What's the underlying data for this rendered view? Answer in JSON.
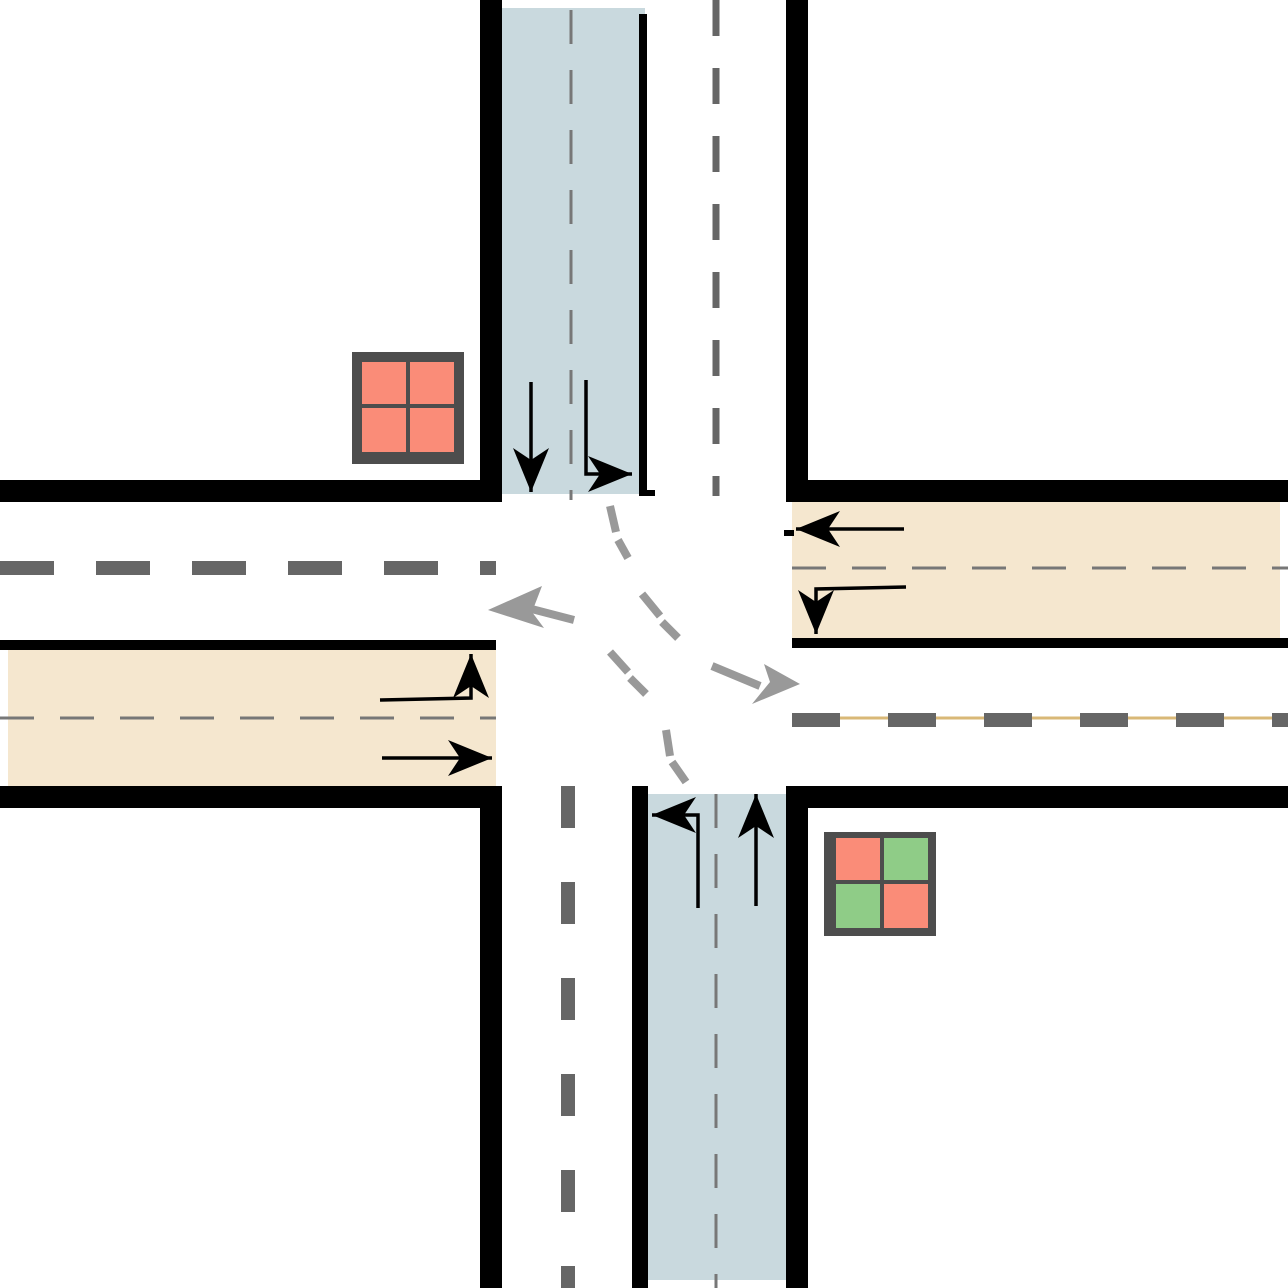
{
  "colors": {
    "background": "#ffffff",
    "road": "#ffffff",
    "curb": "#000000",
    "lane_marking": "#666666",
    "lane_marking_thin": "#777777",
    "arrow": "#000000",
    "path_guide": "#999999",
    "ns_approach_fill": "#c9d9de",
    "ew_approach_fill": "#f5e7cf",
    "signal_frame": "#4d4d4d",
    "signal_red": "#fa8c78",
    "signal_green": "#8fcc87",
    "yellow_trace": "#d9b877"
  },
  "signals": [
    {
      "name": "northwest-signal",
      "controls": "north-south",
      "lamps": [
        "red",
        "red",
        "red",
        "red"
      ]
    },
    {
      "name": "southeast-signal",
      "controls": "east-west",
      "lamps": [
        "red",
        "green",
        "green",
        "red"
      ]
    }
  ],
  "approaches": [
    {
      "name": "north-approach",
      "direction": "southbound",
      "movements": [
        "straight",
        "left-turn"
      ]
    },
    {
      "name": "south-approach",
      "direction": "northbound",
      "movements": [
        "left-turn",
        "straight"
      ]
    },
    {
      "name": "west-approach",
      "direction": "eastbound",
      "movements": [
        "left-turn",
        "straight"
      ]
    },
    {
      "name": "east-approach",
      "direction": "westbound",
      "movements": [
        "straight",
        "left-turn"
      ]
    }
  ],
  "icons": {
    "straight_arrow": "arrow-straight-icon",
    "turn_arrow": "arrow-left-turn-icon",
    "signal": "traffic-signal-icon"
  }
}
